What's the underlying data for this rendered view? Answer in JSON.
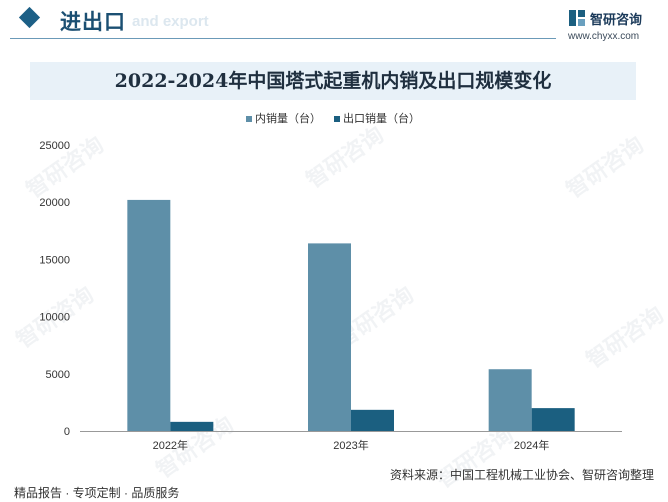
{
  "header": {
    "section_title": "进出口",
    "section_subtitle": "and export",
    "logo_name": "智研咨询",
    "logo_url": "www.chyxx.com"
  },
  "chart_data": {
    "type": "bar",
    "title": "2022-2024年中国塔式起重机内销及出口规模变化",
    "categories": [
      "2022年",
      "2023年",
      "2024年"
    ],
    "series": [
      {
        "name": "内销量（台）",
        "values": [
          20200,
          16400,
          5400
        ],
        "color": "#5e8fa8"
      },
      {
        "name": "出口销量（台）",
        "values": [
          800,
          1850,
          2000
        ],
        "color": "#1b5f80"
      }
    ],
    "ylim": [
      0,
      25000
    ],
    "yticks": [
      "25000",
      "20000",
      "15000",
      "10000",
      "5000",
      "0"
    ],
    "ytick_values": [
      25000,
      20000,
      15000,
      10000,
      5000,
      0
    ],
    "grid": false,
    "legend": "top-center"
  },
  "footer": {
    "left": "精品报告 · 专项定制 · 品质服务",
    "source": "资料来源：中国工程机械工业协会、智研咨询整理"
  },
  "watermark": "智研咨询"
}
